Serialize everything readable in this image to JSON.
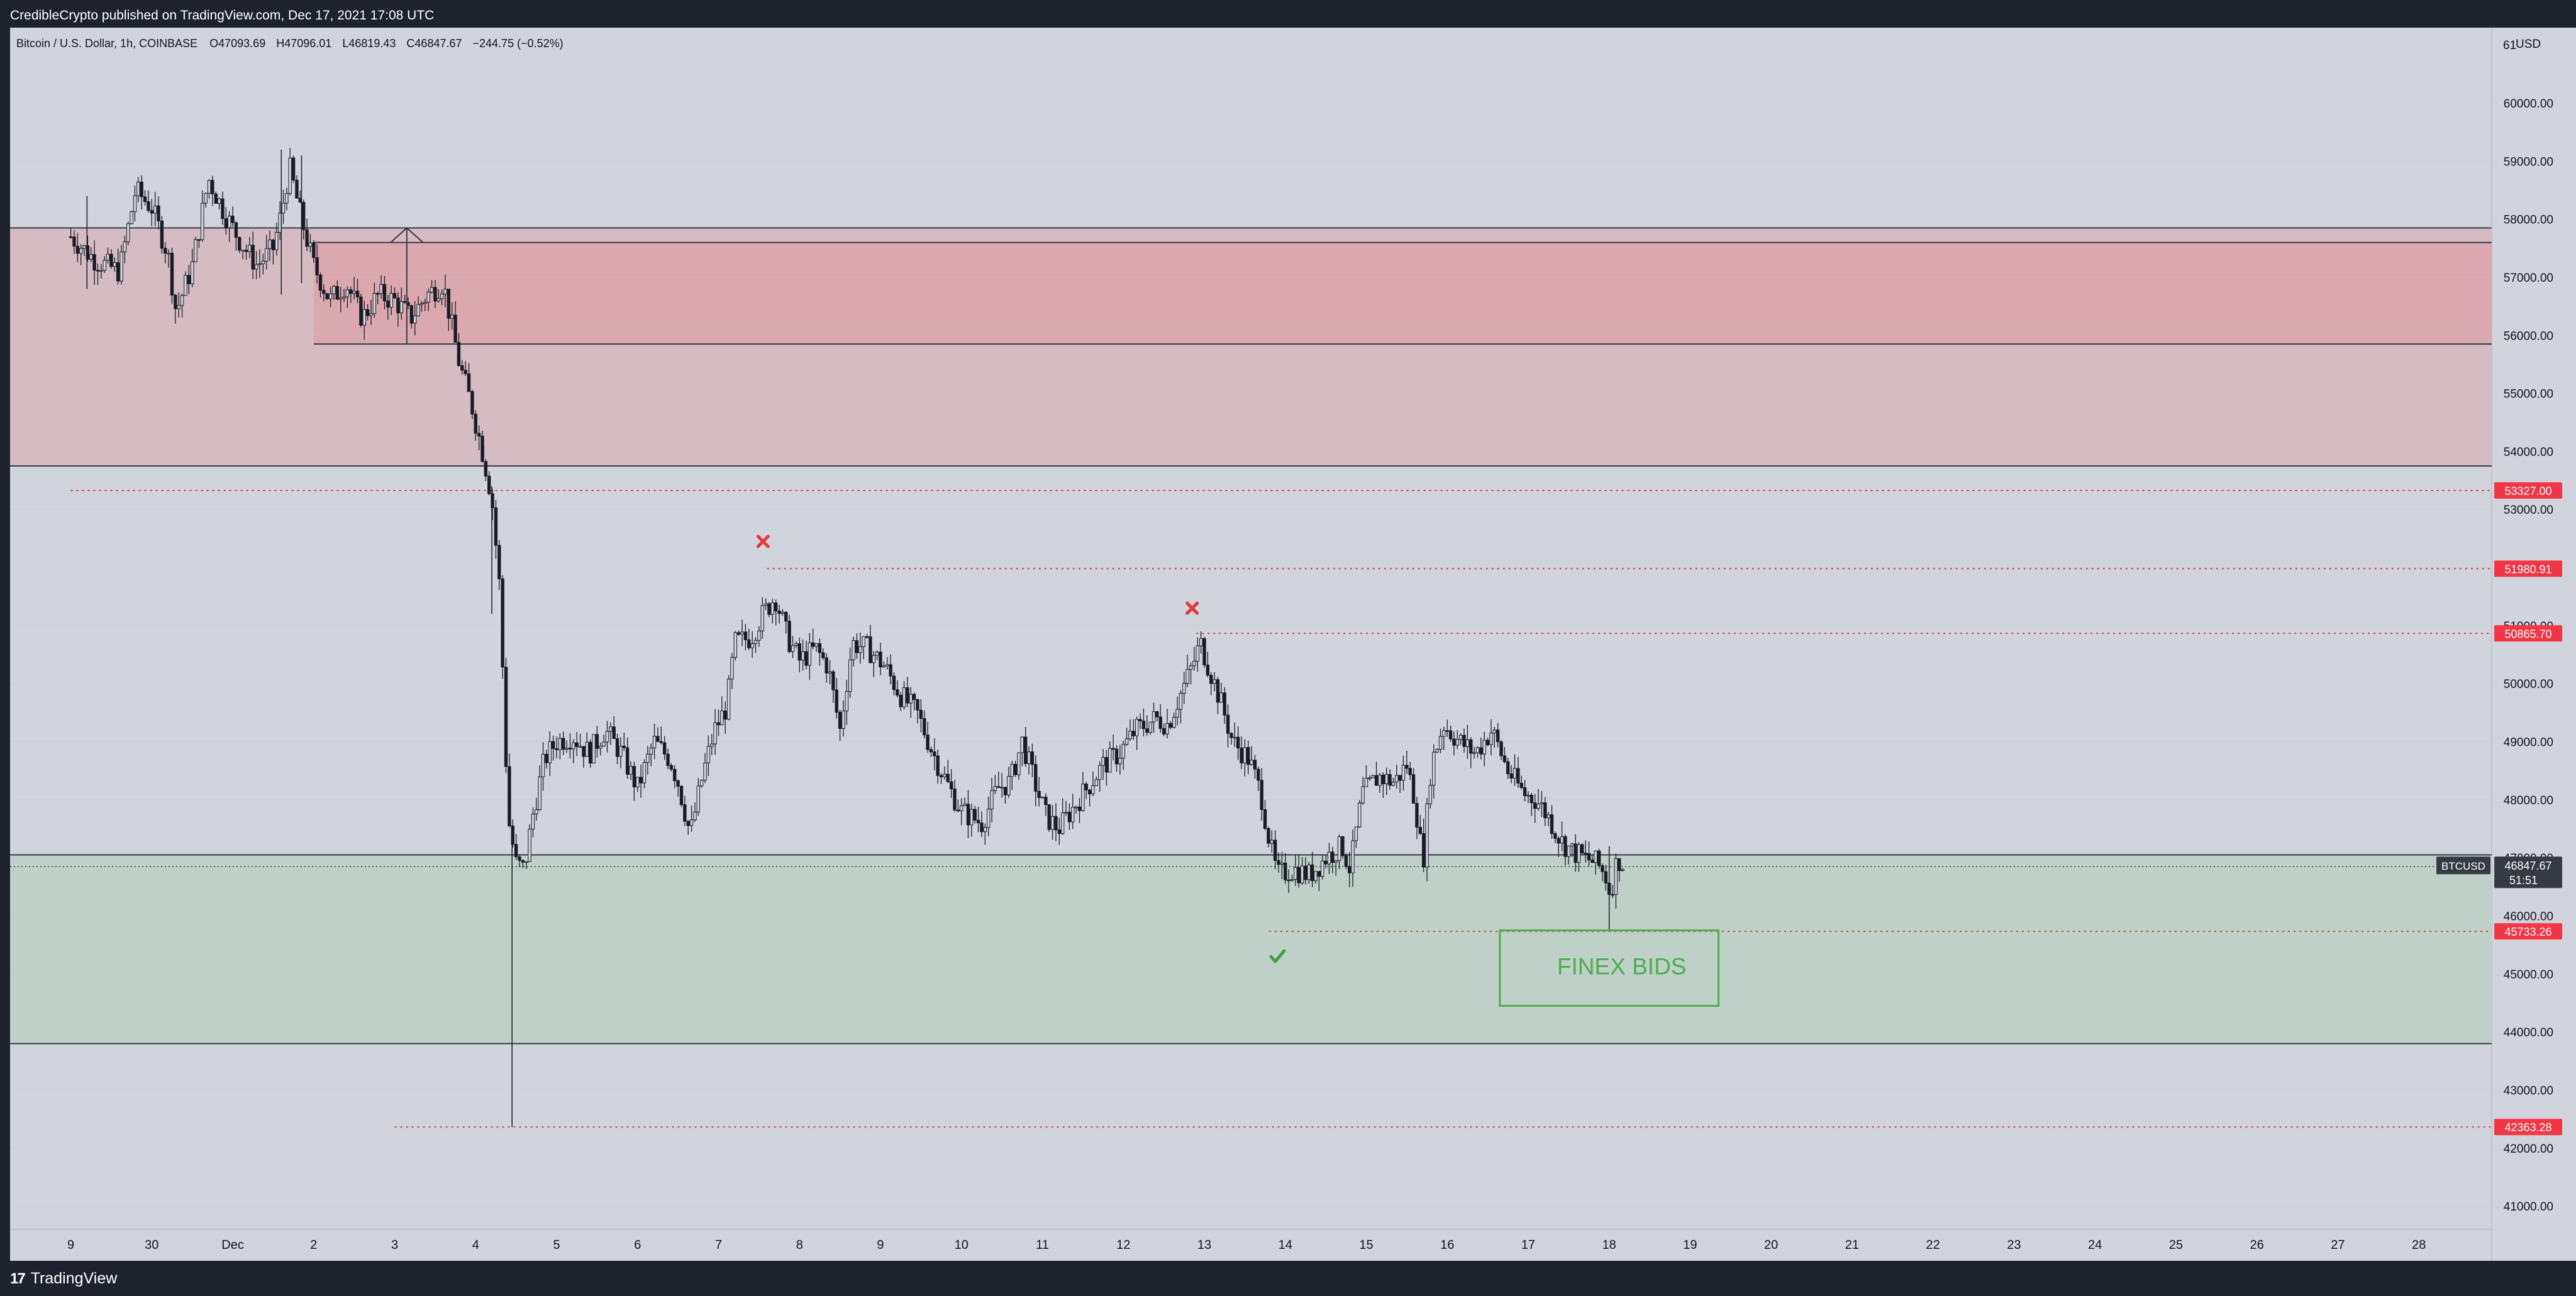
{
  "header": {
    "published": "CredibleCrypto published on TradingView.com, Dec 17, 2021 17:08 UTC"
  },
  "footer": {
    "brand": "TradingView",
    "logo_icon": "tradingview-logo-icon"
  },
  "chart_data": {
    "type": "candlestick",
    "symbol_line": {
      "name": "Bitcoin / U.S. Dollar, 1h, COINBASE",
      "open": "O47093.69",
      "high": "H47096.01",
      "low": "L46819.43",
      "close": "C46847.67",
      "change": "−244.75 (−0.52%)"
    },
    "currency": "USD",
    "y_top_partial": "61",
    "ylim": [
      40600,
      61300
    ],
    "y_ticks": [
      "60000.00",
      "59000.00",
      "58000.00",
      "57000.00",
      "56000.00",
      "55000.00",
      "54000.00",
      "53000.00",
      "52000.00",
      "51000.00",
      "50000.00",
      "49000.00",
      "48000.00",
      "47000.00",
      "46000.00",
      "45000.00",
      "44000.00",
      "43000.00",
      "42000.00",
      "41000.00"
    ],
    "x_ticks": [
      {
        "label": "9",
        "day": 29
      },
      {
        "label": "30",
        "day": 30
      },
      {
        "label": "Dec",
        "day": 31
      },
      {
        "label": "2",
        "day": 32
      },
      {
        "label": "3",
        "day": 33
      },
      {
        "label": "4",
        "day": 34
      },
      {
        "label": "5",
        "day": 35
      },
      {
        "label": "6",
        "day": 36
      },
      {
        "label": "7",
        "day": 37
      },
      {
        "label": "8",
        "day": 38
      },
      {
        "label": "9",
        "day": 39
      },
      {
        "label": "10",
        "day": 40
      },
      {
        "label": "11",
        "day": 41
      },
      {
        "label": "12",
        "day": 42
      },
      {
        "label": "13",
        "day": 43
      },
      {
        "label": "14",
        "day": 44
      },
      {
        "label": "15",
        "day": 45
      },
      {
        "label": "16",
        "day": 46
      },
      {
        "label": "17",
        "day": 47
      },
      {
        "label": "18",
        "day": 48
      },
      {
        "label": "19",
        "day": 49
      },
      {
        "label": "20",
        "day": 50
      },
      {
        "label": "21",
        "day": 51
      },
      {
        "label": "22",
        "day": 52
      },
      {
        "label": "23",
        "day": 53
      },
      {
        "label": "24",
        "day": 54
      },
      {
        "label": "25",
        "day": 55
      },
      {
        "label": "26",
        "day": 56
      },
      {
        "label": "27",
        "day": 57
      },
      {
        "label": "28",
        "day": 58
      }
    ],
    "price_path": [
      [
        29.0,
        57700
      ],
      [
        29.3,
        57300
      ],
      [
        29.6,
        57100
      ],
      [
        29.8,
        58500
      ],
      [
        30.0,
        58200
      ],
      [
        30.2,
        57400
      ],
      [
        30.3,
        56400
      ],
      [
        30.5,
        57200
      ],
      [
        30.7,
        58700
      ],
      [
        30.9,
        58100
      ],
      [
        31.1,
        57600
      ],
      [
        31.3,
        57200
      ],
      [
        31.5,
        57500
      ],
      [
        31.6,
        58100
      ],
      [
        31.7,
        58900
      ],
      [
        31.85,
        58000
      ],
      [
        32.0,
        57200
      ],
      [
        32.2,
        56600
      ],
      [
        32.4,
        56900
      ],
      [
        32.6,
        56300
      ],
      [
        32.8,
        56700
      ],
      [
        33.0,
        56600
      ],
      [
        33.2,
        56300
      ],
      [
        33.4,
        56700
      ],
      [
        33.6,
        56900
      ],
      [
        33.8,
        55500
      ],
      [
        33.95,
        54800
      ],
      [
        34.1,
        53900
      ],
      [
        34.2,
        53200
      ],
      [
        34.3,
        51600
      ],
      [
        34.4,
        47700
      ],
      [
        34.5,
        46900
      ],
      [
        34.6,
        46800
      ],
      [
        34.7,
        47700
      ],
      [
        34.85,
        48700
      ],
      [
        35.0,
        49000
      ],
      [
        35.2,
        49100
      ],
      [
        35.4,
        48800
      ],
      [
        35.6,
        49200
      ],
      [
        35.8,
        48800
      ],
      [
        36.0,
        48200
      ],
      [
        36.2,
        49000
      ],
      [
        36.4,
        48700
      ],
      [
        36.5,
        48300
      ],
      [
        36.65,
        47400
      ],
      [
        36.8,
        48400
      ],
      [
        36.95,
        49200
      ],
      [
        37.1,
        49600
      ],
      [
        37.2,
        50700
      ],
      [
        37.4,
        50800
      ],
      [
        37.55,
        51200
      ],
      [
        37.7,
        51500
      ],
      [
        37.85,
        50800
      ],
      [
        38.0,
        50400
      ],
      [
        38.2,
        50600
      ],
      [
        38.35,
        50300
      ],
      [
        38.5,
        49200
      ],
      [
        38.65,
        50700
      ],
      [
        38.85,
        50600
      ],
      [
        39.05,
        50300
      ],
      [
        39.25,
        49800
      ],
      [
        39.45,
        49500
      ],
      [
        39.65,
        48800
      ],
      [
        39.85,
        48200
      ],
      [
        40.0,
        47800
      ],
      [
        40.25,
        47600
      ],
      [
        40.45,
        48200
      ],
      [
        40.6,
        48300
      ],
      [
        40.75,
        49000
      ],
      [
        40.95,
        48100
      ],
      [
        41.05,
        47700
      ],
      [
        41.2,
        47500
      ],
      [
        41.35,
        47800
      ],
      [
        41.55,
        48200
      ],
      [
        41.75,
        48600
      ],
      [
        41.95,
        48800
      ],
      [
        42.15,
        49200
      ],
      [
        42.4,
        49400
      ],
      [
        42.55,
        49300
      ],
      [
        42.7,
        49800
      ],
      [
        42.85,
        50300
      ],
      [
        42.95,
        50700
      ],
      [
        43.1,
        50100
      ],
      [
        43.2,
        49700
      ],
      [
        43.35,
        49000
      ],
      [
        43.55,
        48700
      ],
      [
        43.7,
        48100
      ],
      [
        43.8,
        47300
      ],
      [
        43.9,
        46700
      ],
      [
        44.1,
        46800
      ],
      [
        44.3,
        46700
      ],
      [
        44.5,
        47000
      ],
      [
        44.7,
        47200
      ],
      [
        44.8,
        46800
      ],
      [
        44.95,
        48100
      ],
      [
        45.15,
        48400
      ],
      [
        45.35,
        48300
      ],
      [
        45.5,
        48600
      ],
      [
        45.6,
        48000
      ],
      [
        45.7,
        46900
      ],
      [
        45.8,
        48600
      ],
      [
        45.95,
        49300
      ],
      [
        46.15,
        49000
      ],
      [
        46.35,
        48800
      ],
      [
        46.55,
        49200
      ],
      [
        46.75,
        48500
      ],
      [
        46.95,
        48100
      ],
      [
        47.1,
        48000
      ],
      [
        47.25,
        47700
      ],
      [
        47.4,
        47300
      ],
      [
        47.55,
        47100
      ],
      [
        47.7,
        47000
      ],
      [
        47.85,
        46900
      ],
      [
        47.95,
        46700
      ],
      [
        48.0,
        46450
      ],
      [
        48.05,
        46600
      ],
      [
        48.1,
        47000
      ],
      [
        48.2,
        46850
      ]
    ],
    "wick_events": [
      {
        "day": 34.1,
        "low": 53900,
        "high": 54100
      },
      {
        "day": 34.2,
        "low": 51200,
        "high": 53400
      },
      {
        "day": 34.45,
        "low": 42360,
        "high": 47500
      },
      {
        "day": 29.2,
        "low": 56800,
        "high": 58400
      },
      {
        "day": 31.6,
        "low": 56700,
        "high": 59200
      },
      {
        "day": 31.85,
        "low": 56900,
        "high": 59100
      },
      {
        "day": 48.0,
        "low": 45730,
        "high": 47200
      }
    ],
    "zones": [
      {
        "kind": "supply-upper",
        "y_top": 57600,
        "y_bottom": 55850,
        "x_start_day": 32.0,
        "color": "#dca8af"
      },
      {
        "kind": "supply",
        "y_top": 57850,
        "y_bottom": 53750,
        "color": "#d5bcc3"
      },
      {
        "kind": "demand",
        "y_top": 47050,
        "y_bottom": 43800,
        "color": "#bfd0c8"
      }
    ],
    "horizontal_levels": [
      {
        "price": 53327.0,
        "label": "53327.00",
        "style": "dotted-red",
        "x_start_day": 29.0
      },
      {
        "price": 51980.91,
        "label": "51980.91",
        "style": "dotted-red",
        "x_start_day": 37.6
      },
      {
        "price": 50865.7,
        "label": "50865.70",
        "style": "dotted-red",
        "x_start_day": 42.9
      },
      {
        "price": 45733.26,
        "label": "45733.26",
        "style": "dotted-red",
        "x_start_day": 43.8
      },
      {
        "price": 42363.28,
        "label": "42363.28",
        "style": "dotted-red",
        "x_start_day": 33.0
      }
    ],
    "last_price": {
      "symbol": "BTCUSD",
      "price": "46847.67",
      "value": 46847.67,
      "countdown": "51:51"
    },
    "markers": [
      {
        "kind": "x-mark",
        "day": 37.55,
        "price": 52450,
        "color": "#e53935",
        "icon": "x-mark-icon"
      },
      {
        "kind": "x-mark",
        "day": 42.85,
        "price": 51300,
        "color": "#e53935",
        "icon": "x-mark-icon"
      },
      {
        "kind": "check-mark",
        "day": 43.9,
        "price": 45300,
        "color": "#43a047",
        "icon": "check-icon"
      }
    ],
    "annotation_box": {
      "text": "FINEX BIDS",
      "x_start_day": 46.65,
      "x_end_day": 49.35,
      "y_top": 45750,
      "y_bottom": 44450,
      "color": "#4caf50"
    },
    "colors": {
      "background": "#d1d4dc",
      "candle": "#1a1d26",
      "level_red": "#e53935",
      "price_label_red": "#f23645",
      "axis_panel": "#d1d4dc"
    }
  }
}
